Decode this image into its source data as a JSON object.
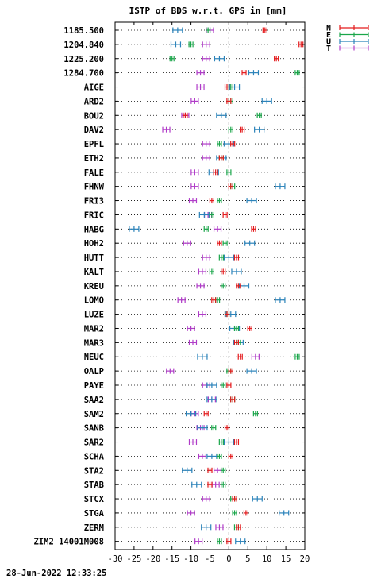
{
  "chart_data": {
    "type": "scatter",
    "title": "ISTP of BDS w.r.t. GPS in [mm]",
    "xlim": [
      -30,
      20
    ],
    "xticks": [
      -30,
      -25,
      -20,
      -15,
      -10,
      -5,
      0,
      5,
      10,
      15,
      20
    ],
    "grid": "horizontal dotted",
    "zero_line": "vertical dashed at 0",
    "legend_position": "top-right outside",
    "colors": {
      "N": "#e41a1c",
      "E": "#1aa64a",
      "U": "#2b83ba",
      "T": "#b03cc8"
    },
    "series_names": [
      "N",
      "E",
      "U",
      "T"
    ],
    "stations": [
      {
        "label": "1185.500",
        "N": 9.5,
        "E": -5.5,
        "U": -13.5,
        "T": -5.0
      },
      {
        "label": "1204.840",
        "N": 19.0,
        "E": -10.0,
        "U": -14.0,
        "T": -6.0
      },
      {
        "label": "1225.200",
        "N": 12.5,
        "E": -15.0,
        "U": -2.5,
        "T": -6.0
      },
      {
        "label": "1284.700",
        "N": 4.0,
        "E": 18.0,
        "U": 6.5,
        "T": -7.5
      },
      {
        "label": "AIGE",
        "N": -0.5,
        "E": 0.5,
        "U": 1.5,
        "T": -7.5
      },
      {
        "label": "ARD2",
        "N": 0.0,
        "E": 0.5,
        "U": 10.0,
        "T": -9.0
      },
      {
        "label": "BOU2",
        "N": -11.5,
        "E": 8.0,
        "U": -2.0,
        "T": -11.5
      },
      {
        "label": "DAV2",
        "N": 3.5,
        "E": 0.5,
        "U": 8.0,
        "T": -16.5
      },
      {
        "label": "EPFL",
        "N": 1.0,
        "E": -2.5,
        "U": 0.0,
        "T": -6.0
      },
      {
        "label": "ETH2",
        "N": -2.0,
        "E": -2.0,
        "U": -2.0,
        "T": -6.0
      },
      {
        "label": "FALE",
        "N": -3.5,
        "E": 0.0,
        "U": -4.0,
        "T": -9.0
      },
      {
        "label": "FHNW",
        "N": 0.5,
        "E": 1.0,
        "U": 13.5,
        "T": -9.0
      },
      {
        "label": "FRI3",
        "N": -4.5,
        "E": -2.5,
        "U": 6.0,
        "T": -9.5
      },
      {
        "label": "FRIC",
        "N": -1.0,
        "E": -4.5,
        "U": -6.5,
        "T": -5.5
      },
      {
        "label": "HABG",
        "N": 6.5,
        "E": -6.0,
        "U": -25.0,
        "T": -3.0
      },
      {
        "label": "HOH2",
        "N": -2.5,
        "E": -1.0,
        "U": 5.5,
        "T": -11.0
      },
      {
        "label": "HUTT",
        "N": 2.0,
        "E": -2.0,
        "U": 0.0,
        "T": -6.0
      },
      {
        "label": "KALT",
        "N": -1.5,
        "E": -4.5,
        "U": 2.0,
        "T": -7.0
      },
      {
        "label": "KREU",
        "N": 2.5,
        "E": -1.5,
        "U": 4.0,
        "T": -7.5
      },
      {
        "label": "LOMO",
        "N": -4.0,
        "E": -3.0,
        "U": 13.5,
        "T": -12.5
      },
      {
        "label": "LUZE",
        "N": -0.5,
        "E": -0.5,
        "U": 0.5,
        "T": -7.0
      },
      {
        "label": "MAR2",
        "N": 5.5,
        "E": 2.0,
        "U": 1.5,
        "T": -10.0
      },
      {
        "label": "MAR3",
        "N": 2.0,
        "E": 2.5,
        "U": 2.5,
        "T": -9.5
      },
      {
        "label": "NEUC",
        "N": 3.0,
        "E": 18.0,
        "U": -7.0,
        "T": 7.0
      },
      {
        "label": "OALP",
        "N": 0.5,
        "E": 0.0,
        "U": 6.0,
        "T": -15.5
      },
      {
        "label": "PAYE",
        "N": 0.0,
        "E": -1.5,
        "U": -4.5,
        "T": -6.0
      },
      {
        "label": "SAA2",
        "N": 1.0,
        "E": 1.0,
        "U": -4.5,
        "T": -4.5
      },
      {
        "label": "SAM2",
        "N": -6.0,
        "E": 7.0,
        "U": -10.0,
        "T": -9.0
      },
      {
        "label": "SANB",
        "N": -0.5,
        "E": -4.0,
        "U": -7.0,
        "T": -7.5
      },
      {
        "label": "SAR2",
        "N": 2.0,
        "E": -2.0,
        "U": 0.0,
        "T": -9.5
      },
      {
        "label": "SCHA",
        "N": 0.5,
        "E": -2.5,
        "U": -4.5,
        "T": -7.0
      },
      {
        "label": "STA2",
        "N": -5.0,
        "E": -1.5,
        "U": -11.0,
        "T": -3.0
      },
      {
        "label": "STAB",
        "N": -5.0,
        "E": -1.5,
        "U": -8.5,
        "T": -3.5
      },
      {
        "label": "STCX",
        "N": 1.5,
        "E": 1.0,
        "U": 7.5,
        "T": -6.0
      },
      {
        "label": "STGA",
        "N": 4.5,
        "E": 1.5,
        "U": 14.5,
        "T": -10.0
      },
      {
        "label": "ZERM",
        "N": 2.5,
        "E": 2.0,
        "U": -6.0,
        "T": -2.5
      },
      {
        "label": "ZIM2_14001M008",
        "N": 0.0,
        "E": -2.5,
        "U": 3.0,
        "T": -8.0
      }
    ]
  },
  "footer": {
    "timestamp": "28-Jun-2022 12:33:25"
  }
}
